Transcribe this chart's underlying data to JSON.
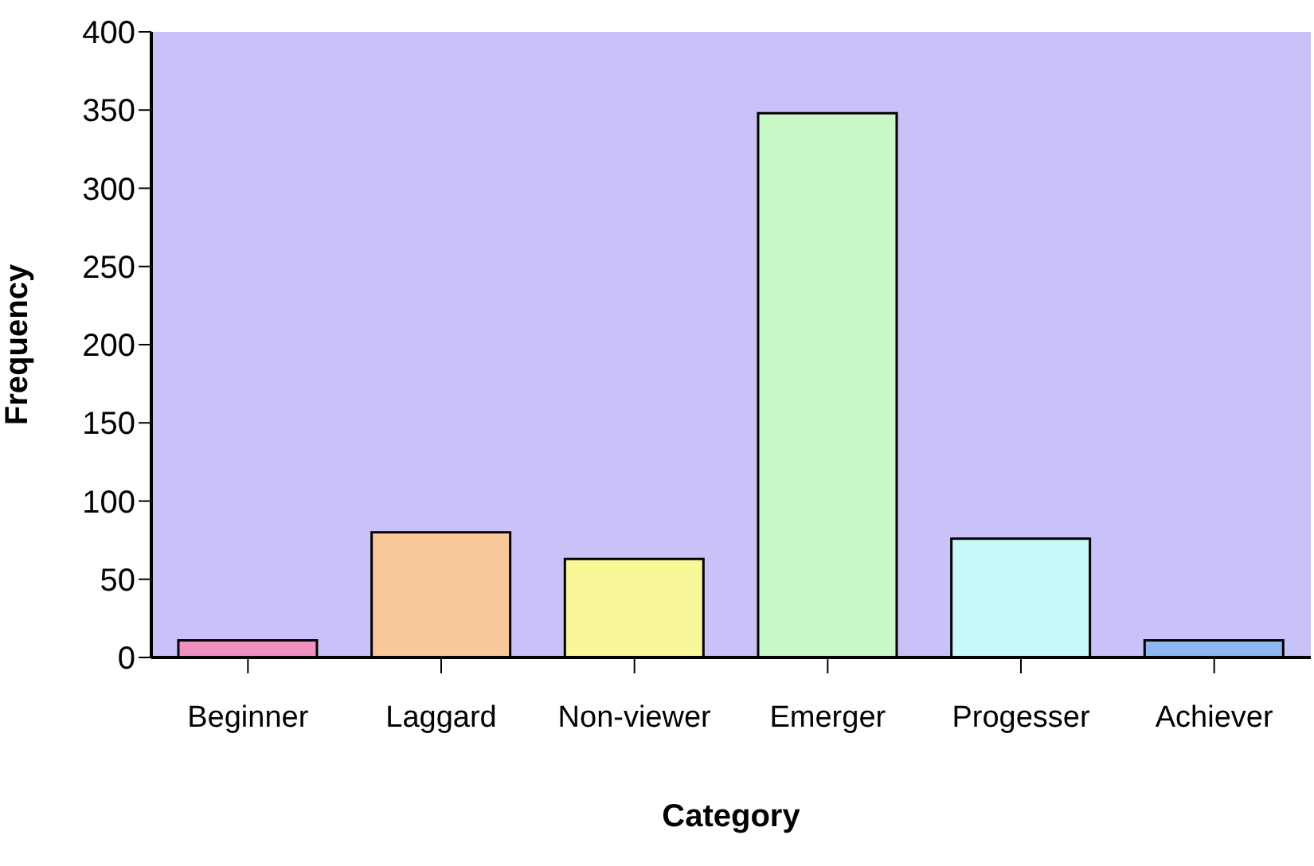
{
  "chart_data": {
    "type": "bar",
    "xlabel": "Category",
    "ylabel": "Frequency",
    "categories": [
      "Beginner",
      "Laggard",
      "Non-viewer",
      "Emerger",
      "Progesser",
      "Achiever"
    ],
    "values": [
      11,
      80,
      63,
      348,
      76,
      11
    ],
    "colors": [
      "#f090c0",
      "#f8c898",
      "#f8f898",
      "#c8f8c8",
      "#c8f8f8",
      "#90b8f0"
    ],
    "ylim": [
      0,
      400
    ],
    "yticks": [
      0,
      50,
      100,
      150,
      200,
      250,
      300,
      350,
      400
    ],
    "grid": false
  }
}
